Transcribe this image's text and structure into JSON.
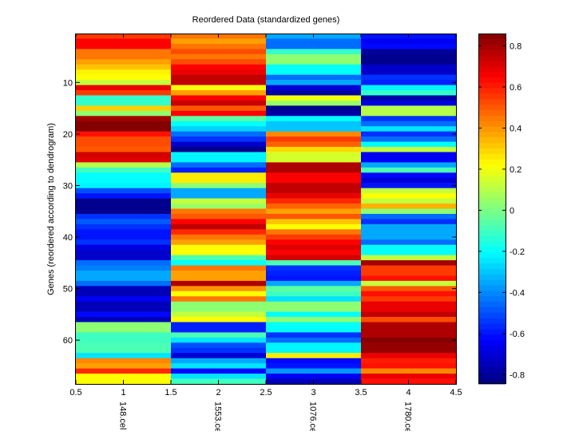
{
  "chart_data": {
    "type": "heatmap",
    "title": "Reordered Data (standardized genes)",
    "xlabel": "",
    "ylabel": "Genes (reordered according to dendrogram)",
    "x_ticks": [
      "0.5",
      "1",
      "1.5",
      "2",
      "2.5",
      "3",
      "3.5",
      "4",
      "4.5"
    ],
    "x_tick_values": [
      0.5,
      1,
      1.5,
      2,
      2.5,
      3,
      3.5,
      4,
      4.5
    ],
    "xlim": [
      0.5,
      4.5
    ],
    "columns": [
      "148.cel",
      "1553.cel",
      "1076.cel",
      "1780.cel"
    ],
    "y_ticks": [
      "10",
      "20",
      "30",
      "40",
      "50",
      "60"
    ],
    "y_tick_values": [
      10,
      20,
      30,
      40,
      50,
      60
    ],
    "ylim": [
      0.5,
      68.5
    ],
    "colormap": "jet",
    "clim": [
      -0.845,
      0.86
    ],
    "colorbar_ticks": [
      "0.8",
      "0.6",
      "0.4",
      "0.2",
      "0",
      "-0.2",
      "-0.4",
      "-0.6",
      "-0.8"
    ],
    "colorbar_tick_values": [
      0.8,
      0.6,
      0.4,
      0.2,
      0,
      -0.2,
      -0.4,
      -0.6,
      -0.8
    ],
    "grid": false,
    "values": [
      [
        0.55,
        0.45,
        -0.35,
        -0.6
      ],
      [
        0.65,
        0.38,
        -0.45,
        -0.65
      ],
      [
        0.65,
        0.45,
        -0.45,
        -0.62
      ],
      [
        0.45,
        0.52,
        -0.12,
        -0.8
      ],
      [
        0.45,
        0.45,
        0.03,
        -0.82
      ],
      [
        0.38,
        0.52,
        0.03,
        -0.82
      ],
      [
        0.32,
        0.65,
        -0.2,
        -0.72
      ],
      [
        0.24,
        0.68,
        -0.2,
        -0.72
      ],
      [
        0.22,
        0.75,
        -0.45,
        -0.55
      ],
      [
        0.12,
        0.75,
        -0.35,
        -0.58
      ],
      [
        0.68,
        0.2,
        -0.7,
        -0.22
      ],
      [
        0.55,
        0.38,
        -0.78,
        -0.12
      ],
      [
        -0.12,
        0.65,
        0.2,
        -0.78
      ],
      [
        -0.12,
        0.74,
        0.05,
        -0.68
      ],
      [
        0.3,
        0.5,
        -0.82,
        0.1
      ],
      [
        0.03,
        0.65,
        -0.78,
        0.1
      ],
      [
        0.8,
        -0.05,
        -0.2,
        -0.55
      ],
      [
        0.85,
        -0.2,
        -0.3,
        -0.45
      ],
      [
        0.85,
        -0.28,
        -0.3,
        -0.25
      ],
      [
        0.62,
        -0.45,
        0.42,
        -0.55
      ],
      [
        0.52,
        -0.55,
        0.55,
        -0.45
      ],
      [
        0.52,
        -0.72,
        0.48,
        -0.2
      ],
      [
        0.5,
        -0.82,
        0.28,
        0.12
      ],
      [
        0.72,
        -0.22,
        0.15,
        -0.65
      ],
      [
        0.7,
        -0.22,
        0.15,
        -0.65
      ],
      [
        0.1,
        -0.45,
        0.78,
        -0.35
      ],
      [
        -0.1,
        -0.58,
        0.78,
        -0.08
      ],
      [
        -0.2,
        0.25,
        0.65,
        -0.62
      ],
      [
        -0.2,
        0.25,
        0.65,
        -0.7
      ],
      [
        -0.22,
        0.03,
        0.75,
        -0.6
      ],
      [
        -0.5,
        -0.35,
        0.75,
        0.12
      ],
      [
        -0.6,
        -0.35,
        0.68,
        0.22
      ],
      [
        -0.82,
        0.12,
        0.58,
        0.12
      ],
      [
        -0.82,
        0.05,
        0.48,
        0.35
      ],
      [
        -0.82,
        0.45,
        0.38,
        0.03
      ],
      [
        -0.55,
        0.5,
        0.5,
        -0.45
      ],
      [
        -0.48,
        0.65,
        0.32,
        -0.55
      ],
      [
        -0.55,
        0.75,
        0.22,
        -0.35
      ],
      [
        -0.6,
        0.58,
        0.45,
        -0.35
      ],
      [
        -0.6,
        0.45,
        0.55,
        -0.35
      ],
      [
        -0.55,
        0.38,
        0.65,
        -0.45
      ],
      [
        -0.68,
        0.22,
        0.7,
        -0.2
      ],
      [
        -0.72,
        0.22,
        0.65,
        -0.2
      ],
      [
        -0.72,
        -0.08,
        0.72,
        0.12
      ],
      [
        -0.45,
        -0.2,
        -0.08,
        0.8
      ],
      [
        -0.42,
        0.45,
        -0.55,
        0.55
      ],
      [
        -0.35,
        0.38,
        -0.58,
        0.55
      ],
      [
        -0.35,
        0.38,
        -0.6,
        0.62
      ],
      [
        -0.45,
        0.78,
        -0.35,
        0.12
      ],
      [
        -0.75,
        0.4,
        -0.05,
        0.5
      ],
      [
        -0.75,
        0.22,
        -0.1,
        0.62
      ],
      [
        -0.65,
        0.45,
        -0.25,
        0.55
      ],
      [
        -0.75,
        0.03,
        0.03,
        0.68
      ],
      [
        -0.75,
        0.03,
        0.03,
        0.68
      ],
      [
        -0.62,
        0.12,
        -0.2,
        0.75
      ],
      [
        -0.75,
        0.22,
        0.03,
        0.52
      ],
      [
        0.03,
        -0.58,
        -0.2,
        0.78
      ],
      [
        0.03,
        -0.58,
        -0.2,
        0.78
      ],
      [
        -0.1,
        -0.08,
        -0.55,
        0.78
      ],
      [
        -0.1,
        -0.25,
        -0.45,
        0.85
      ],
      [
        -0.08,
        -0.5,
        -0.22,
        0.82
      ],
      [
        -0.08,
        -0.55,
        -0.22,
        0.82
      ],
      [
        -0.25,
        -0.7,
        0.25,
        0.68
      ],
      [
        0.42,
        -0.35,
        -0.62,
        0.6
      ],
      [
        0.38,
        -0.25,
        -0.6,
        0.62
      ],
      [
        0.58,
        -0.62,
        -0.38,
        0.42
      ],
      [
        0.22,
        -0.25,
        -0.65,
        0.68
      ],
      [
        0.22,
        -0.1,
        -0.75,
        0.62
      ]
    ]
  }
}
